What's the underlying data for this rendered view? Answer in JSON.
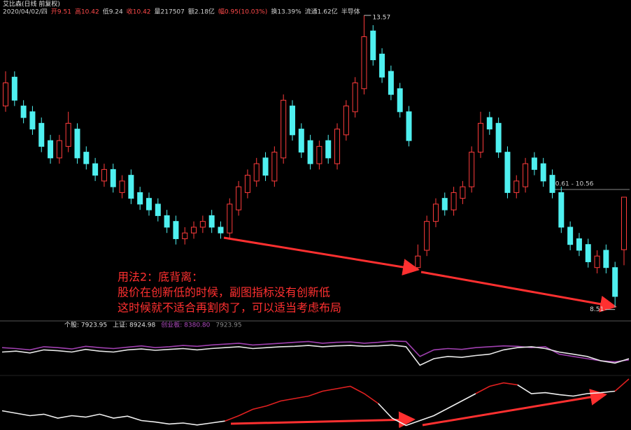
{
  "header": {
    "title": "艾比森(日线 前复权)",
    "info": [
      {
        "text": "2020/04/02/四",
        "color": "#d0d0d0"
      },
      {
        "text": "开9.51",
        "color": "#ff4a4a"
      },
      {
        "text": "高10.42",
        "color": "#ff4a4a"
      },
      {
        "text": "低9.24",
        "color": "#d0d0d0"
      },
      {
        "text": "收10.42",
        "color": "#ff4a4a"
      },
      {
        "text": "量217507",
        "color": "#d0d0d0"
      },
      {
        "text": "额2.18亿",
        "color": "#d0d0d0"
      },
      {
        "text": "幅0.95(10.03%)",
        "color": "#ff4a4a"
      },
      {
        "text": "换13.39%",
        "color": "#d0d0d0"
      },
      {
        "text": "流通1.62亿",
        "color": "#d0d0d0"
      },
      {
        "text": "半导体",
        "color": "#d0d0d0"
      }
    ]
  },
  "chart_data": [
    {
      "type": "candlestick",
      "ylim": [
        8.3,
        13.8
      ],
      "up_color": "#ff3c3c",
      "down_color": "#4ff0f0",
      "open": [
        12.0,
        12.5,
        12.0,
        11.9,
        11.7,
        11.4,
        11.1,
        11.3,
        11.6,
        11.2,
        11.0,
        10.7,
        10.9,
        10.5,
        10.8,
        10.5,
        10.4,
        10.3,
        10.1,
        10.0,
        9.7,
        9.8,
        9.9,
        10.1,
        9.9,
        9.8,
        10.2,
        10.5,
        10.7,
        11.1,
        10.7,
        11.1,
        12.0,
        11.6,
        11.4,
        11.0,
        11.4,
        11.0,
        11.5,
        11.9,
        12.3,
        13.3,
        12.9,
        12.6,
        12.3,
        11.9,
        9.2,
        9.5,
        10.0,
        10.4,
        10.2,
        10.4,
        10.6,
        11.2,
        11.8,
        11.7,
        11.2,
        10.5,
        10.6,
        11.1,
        11.0,
        10.8,
        10.5,
        9.9,
        9.7,
        9.6,
        9.2,
        9.5,
        9.2,
        9.51
      ],
      "high": [
        12.6,
        12.6,
        12.1,
        12.0,
        11.8,
        11.5,
        11.5,
        11.9,
        11.7,
        11.3,
        11.1,
        11.0,
        11.0,
        10.8,
        10.9,
        10.6,
        10.5,
        10.4,
        10.2,
        10.1,
        9.9,
        10.0,
        10.1,
        10.2,
        10.0,
        10.4,
        10.7,
        10.9,
        11.1,
        11.2,
        11.3,
        12.2,
        12.1,
        11.7,
        11.5,
        11.4,
        11.5,
        11.7,
        12.1,
        12.5,
        13.57,
        13.4,
        13.0,
        12.7,
        12.4,
        12.0,
        9.6,
        10.1,
        10.4,
        10.5,
        10.6,
        10.7,
        11.3,
        11.9,
        11.9,
        11.8,
        11.3,
        10.8,
        11.1,
        11.2,
        11.1,
        10.9,
        10.6,
        10.0,
        9.8,
        9.7,
        9.5,
        9.6,
        9.3,
        10.42
      ],
      "low": [
        11.9,
        12.0,
        11.7,
        11.5,
        11.2,
        11.0,
        11.0,
        11.2,
        11.0,
        10.9,
        10.7,
        10.6,
        10.5,
        10.4,
        10.3,
        10.2,
        10.1,
        10.0,
        9.8,
        9.6,
        9.6,
        9.7,
        9.8,
        9.8,
        9.7,
        9.7,
        10.1,
        10.4,
        10.6,
        10.7,
        10.6,
        11.0,
        11.4,
        11.1,
        10.9,
        10.9,
        11.0,
        10.9,
        11.4,
        11.8,
        12.2,
        12.7,
        12.4,
        12.1,
        11.8,
        11.3,
        9.15,
        9.4,
        9.9,
        10.1,
        10.1,
        10.3,
        10.5,
        11.1,
        11.5,
        11.1,
        10.4,
        10.4,
        10.5,
        10.8,
        10.6,
        10.4,
        9.8,
        9.5,
        9.4,
        9.2,
        9.1,
        9.1,
        8.51,
        9.24
      ],
      "close": [
        12.4,
        12.1,
        11.8,
        11.6,
        11.3,
        11.1,
        11.4,
        11.7,
        11.1,
        11.0,
        10.8,
        10.9,
        10.6,
        10.7,
        10.4,
        10.3,
        10.2,
        10.1,
        9.9,
        9.7,
        9.8,
        9.9,
        10.0,
        9.9,
        9.8,
        10.3,
        10.6,
        10.8,
        11.0,
        10.8,
        11.2,
        12.1,
        11.5,
        11.2,
        11.0,
        11.3,
        11.1,
        11.6,
        12.0,
        12.4,
        13.2,
        12.8,
        12.5,
        12.2,
        11.9,
        11.4,
        9.4,
        10.0,
        10.3,
        10.2,
        10.5,
        10.6,
        11.2,
        11.7,
        11.6,
        11.2,
        10.5,
        10.7,
        11.0,
        10.9,
        10.7,
        10.5,
        9.9,
        9.6,
        9.5,
        9.3,
        9.4,
        9.2,
        8.7,
        10.42
      ],
      "annotation": "10.61 - 10.56",
      "note": [
        "用法2：底背离：",
        "股价在创新低的时候，副图指标没有创新低",
        "这时候就不适合再割肉了，可以适当考虑布局"
      ]
    },
    {
      "type": "line",
      "ylim": [
        0,
        100
      ],
      "legend": [
        {
          "text": "个股: 7923.95",
          "color": "#e0e0e0"
        },
        {
          "text": "上证: 8924.98",
          "color": "#e0e0e0"
        },
        {
          "text": "创业板: 8380.80",
          "color": "#b04cc0"
        },
        {
          "text": "7923.95",
          "color": "#888888"
        }
      ],
      "series": [
        {
          "color": "#a040b0",
          "values": [
            60,
            58,
            55,
            62,
            60,
            57,
            63,
            60,
            58,
            61,
            64,
            60,
            62,
            65,
            63,
            66,
            68,
            70,
            66,
            68,
            70,
            72,
            74,
            70,
            72,
            73,
            70,
            72,
            75,
            74,
            40,
            55,
            58,
            56,
            60,
            62,
            64,
            63,
            60,
            62,
            45,
            40,
            35,
            30,
            28,
            32
          ]
        },
        {
          "color": "#e8e8e8",
          "values": [
            50,
            52,
            48,
            55,
            53,
            50,
            56,
            52,
            50,
            55,
            57,
            54,
            56,
            58,
            55,
            58,
            60,
            62,
            58,
            60,
            62,
            63,
            65,
            62,
            64,
            65,
            63,
            64,
            66,
            62,
            20,
            35,
            40,
            38,
            42,
            45,
            55,
            60,
            62,
            58,
            50,
            45,
            40,
            30,
            25,
            35
          ]
        }
      ]
    },
    {
      "type": "line",
      "ylim": [
        0,
        100
      ],
      "series": [
        {
          "color": "#f0f0f0",
          "values": [
            35,
            30,
            25,
            28,
            20,
            25,
            22,
            28,
            20,
            24,
            15,
            12,
            8,
            10,
            6,
            10,
            14,
            null,
            null,
            null,
            null,
            null,
            null,
            null,
            null,
            null,
            null,
            50,
            20,
            5,
            15,
            25,
            40,
            55,
            70,
            null,
            null,
            88,
            70,
            72,
            68,
            65,
            70,
            72,
            75,
            null
          ]
        },
        {
          "color": "#e02020",
          "values": [
            null,
            null,
            null,
            null,
            null,
            null,
            null,
            null,
            null,
            null,
            null,
            null,
            null,
            null,
            null,
            null,
            14,
            25,
            38,
            45,
            55,
            60,
            65,
            75,
            80,
            85,
            70,
            50,
            null,
            null,
            null,
            null,
            null,
            null,
            70,
            85,
            92,
            88,
            null,
            null,
            null,
            null,
            null,
            null,
            75,
            100
          ]
        }
      ]
    }
  ]
}
